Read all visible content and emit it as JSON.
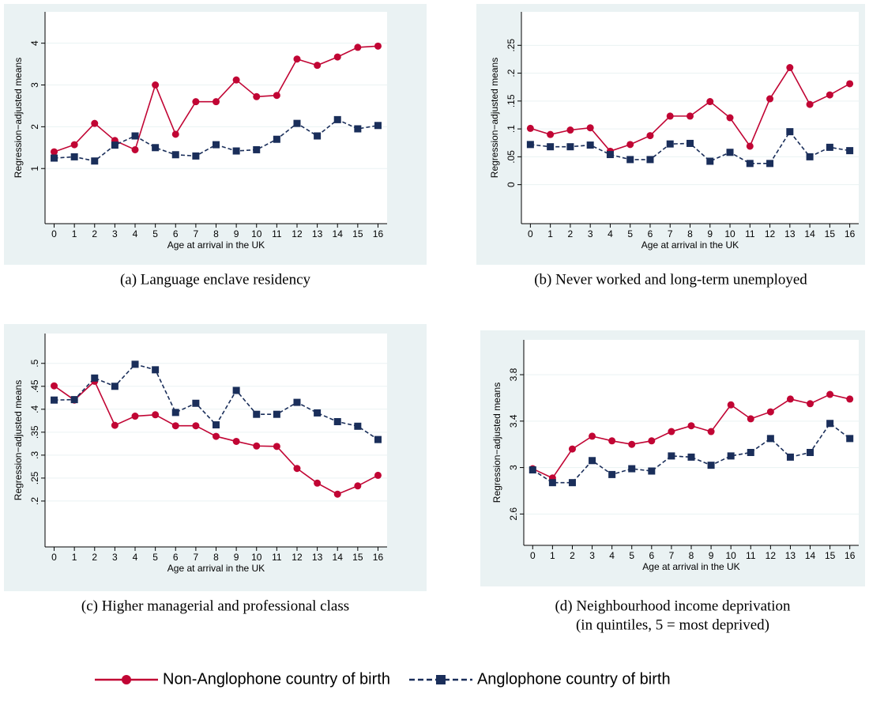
{
  "chart_data": [
    {
      "type": "line",
      "caption": [
        "(a) Language enclave residency"
      ],
      "ylabel": "Regression−adjusted means",
      "xlabel": "Age at arrival in the UK",
      "x": [
        0,
        1,
        2,
        3,
        4,
        5,
        6,
        7,
        8,
        9,
        10,
        11,
        12,
        13,
        14,
        15,
        16
      ],
      "xlim": [
        -0.45,
        16.45
      ],
      "ylim": [
        -0.32,
        4.75
      ],
      "yticks": [
        1,
        2,
        3,
        4
      ],
      "grid": true,
      "series": [
        {
          "name": "Non-Anglophone country of birth",
          "color": "#c10534",
          "line_style": "solid",
          "marker": "circle",
          "values": [
            1.4,
            1.57,
            2.08,
            1.67,
            1.45,
            3.0,
            1.82,
            2.6,
            2.6,
            3.12,
            2.72,
            2.75,
            3.62,
            3.47,
            3.67,
            3.9,
            3.93
          ]
        },
        {
          "name": "Anglophone country of birth",
          "color": "#1a2e5a",
          "line_style": "dashed",
          "marker": "square",
          "values": [
            1.25,
            1.28,
            1.18,
            1.56,
            1.78,
            1.5,
            1.33,
            1.3,
            1.57,
            1.42,
            1.45,
            1.7,
            2.08,
            1.78,
            2.17,
            1.95,
            2.03
          ]
        }
      ]
    },
    {
      "type": "line",
      "caption": [
        "(b) Never worked and long-term unemployed"
      ],
      "ylabel": "Regression−adjusted means",
      "xlabel": "Age at arrival in the UK",
      "x": [
        0,
        1,
        2,
        3,
        4,
        5,
        6,
        7,
        8,
        9,
        10,
        11,
        12,
        13,
        14,
        15,
        16
      ],
      "xlim": [
        -0.45,
        16.45
      ],
      "ylim": [
        -0.07,
        0.31
      ],
      "yticks": [
        0,
        {
          "value": 0.05,
          "label": ".05"
        },
        {
          "value": 0.1,
          "label": ".1"
        },
        {
          "value": 0.15,
          "label": ".15"
        },
        {
          "value": 0.2,
          "label": ".2"
        },
        {
          "value": 0.25,
          "label": ".25"
        }
      ],
      "grid": true,
      "series": [
        {
          "name": "Non-Anglophone country of birth",
          "color": "#c10534",
          "line_style": "solid",
          "marker": "circle",
          "values": [
            0.101,
            0.09,
            0.098,
            0.102,
            0.06,
            0.072,
            0.088,
            0.123,
            0.123,
            0.149,
            0.12,
            0.069,
            0.154,
            0.21,
            0.144,
            0.161,
            0.181
          ]
        },
        {
          "name": "Anglophone country of birth",
          "color": "#1a2e5a",
          "line_style": "dashed",
          "marker": "square",
          "values": [
            0.072,
            0.068,
            0.068,
            0.071,
            0.054,
            0.045,
            0.045,
            0.073,
            0.074,
            0.042,
            0.058,
            0.038,
            0.038,
            0.095,
            0.05,
            0.067,
            0.061
          ]
        }
      ]
    },
    {
      "type": "line",
      "caption": [
        "(c) Higher managerial and professional class"
      ],
      "ylabel": "Regression−adjusted means",
      "xlabel": "Age at arrival in the UK",
      "x": [
        0,
        1,
        2,
        3,
        4,
        5,
        6,
        7,
        8,
        9,
        10,
        11,
        12,
        13,
        14,
        15,
        16
      ],
      "xlim": [
        -0.45,
        16.45
      ],
      "ylim": [
        0.1,
        0.565
      ],
      "yticks": [
        {
          "value": 0.2,
          "label": ".2"
        },
        {
          "value": 0.25,
          "label": ".25"
        },
        {
          "value": 0.3,
          "label": ".3"
        },
        {
          "value": 0.35,
          "label": ".35"
        },
        {
          "value": 0.4,
          "label": ".4"
        },
        {
          "value": 0.45,
          "label": ".45"
        },
        {
          "value": 0.5,
          "label": ".5"
        }
      ],
      "grid": true,
      "series": [
        {
          "name": "Non-Anglophone country of birth",
          "color": "#c10534",
          "line_style": "solid",
          "marker": "circle",
          "values": [
            0.451,
            0.42,
            0.461,
            0.365,
            0.385,
            0.388,
            0.364,
            0.364,
            0.341,
            0.33,
            0.32,
            0.319,
            0.271,
            0.239,
            0.215,
            0.233,
            0.256
          ]
        },
        {
          "name": "Anglophone country of birth",
          "color": "#1a2e5a",
          "line_style": "dashed",
          "marker": "square",
          "values": [
            0.42,
            0.421,
            0.468,
            0.45,
            0.498,
            0.486,
            0.393,
            0.413,
            0.366,
            0.441,
            0.389,
            0.389,
            0.415,
            0.392,
            0.373,
            0.363,
            0.334
          ]
        }
      ]
    },
    {
      "type": "line",
      "caption": [
        "(d) Neighbourhood income deprivation",
        "(in quintiles, 5 = most deprived)"
      ],
      "ylabel": "Regression−adjusted means",
      "xlabel": "Age at arrival in the UK",
      "x": [
        0,
        1,
        2,
        3,
        4,
        5,
        6,
        7,
        8,
        9,
        10,
        11,
        12,
        13,
        14,
        15,
        16
      ],
      "xlim": [
        -0.45,
        16.45
      ],
      "ylim": [
        2.33,
        4.1
      ],
      "yticks": [
        2.6,
        3,
        3.4,
        3.8
      ],
      "grid": true,
      "series": [
        {
          "name": "Non-Anglophone country of birth",
          "color": "#c10534",
          "line_style": "solid",
          "marker": "circle",
          "values": [
            2.99,
            2.91,
            3.16,
            3.27,
            3.23,
            3.2,
            3.23,
            3.31,
            3.36,
            3.31,
            3.54,
            3.42,
            3.48,
            3.59,
            3.55,
            3.63,
            3.59
          ]
        },
        {
          "name": "Anglophone country of birth",
          "color": "#1a2e5a",
          "line_style": "dashed",
          "marker": "square",
          "values": [
            2.98,
            2.87,
            2.87,
            3.06,
            2.94,
            2.99,
            2.97,
            3.1,
            3.09,
            3.02,
            3.1,
            3.13,
            3.25,
            3.09,
            3.13,
            3.38,
            3.25
          ]
        }
      ]
    }
  ]
}
